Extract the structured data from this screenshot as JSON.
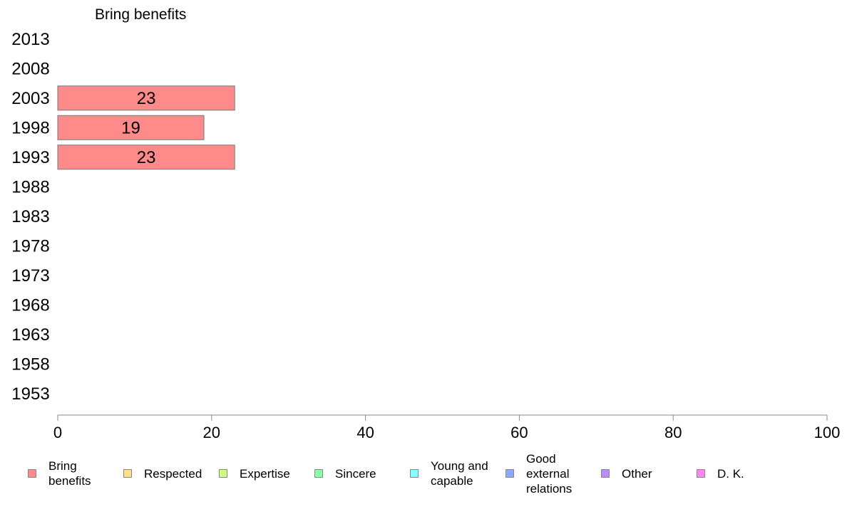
{
  "chart_data": {
    "type": "bar",
    "title": "Bring benefits",
    "xlabel": "",
    "ylabel": "",
    "categories": [
      "2013",
      "2008",
      "2003",
      "1998",
      "1993",
      "1988",
      "1983",
      "1978",
      "1973",
      "1968",
      "1963",
      "1958",
      "1953"
    ],
    "series": [
      {
        "name": "Bring benefits",
        "color": "#ff8a8a",
        "values": [
          null,
          null,
          23,
          19,
          23,
          null,
          null,
          null,
          null,
          null,
          null,
          null,
          null
        ]
      }
    ],
    "data_labels": [
      null,
      null,
      "23",
      "19",
      "23",
      null,
      null,
      null,
      null,
      null,
      null,
      null,
      null
    ],
    "xlim": [
      0,
      100
    ],
    "xticks": [
      "0",
      "20",
      "40",
      "60",
      "80",
      "100"
    ],
    "grid": false,
    "orientation": "horizontal"
  },
  "legend": {
    "items": [
      {
        "label": "Bring\nbenefits",
        "color": "#ff8a8a"
      },
      {
        "label": "Respected",
        "color": "#ffe08a"
      },
      {
        "label": "Expertise",
        "color": "#ccff8a"
      },
      {
        "label": "Sincere",
        "color": "#8affa8"
      },
      {
        "label": "Young and\ncapable",
        "color": "#8affff"
      },
      {
        "label": "Good\nexternal\nrelations",
        "color": "#8aaaff"
      },
      {
        "label": "Other",
        "color": "#bb8aff"
      },
      {
        "label": "D. K.",
        "color": "#ff8aee"
      }
    ]
  }
}
